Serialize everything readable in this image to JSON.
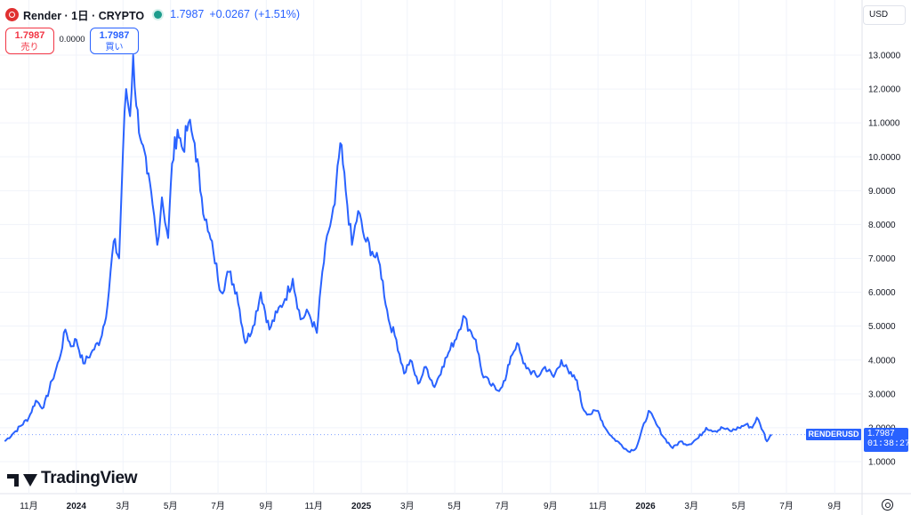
{
  "header": {
    "symbol_title": "Render · 1日 · CRYPTO",
    "price": "1.7987",
    "change": "+0.0267",
    "change_pct": "(+1.51%)"
  },
  "trade": {
    "sell_value": "1.7987",
    "sell_label": "売り",
    "spread": "0.0000",
    "buy_value": "1.7987",
    "buy_label": "買い"
  },
  "currency": "USD",
  "symbol_tag": "RENDERUSD",
  "last_price_tag": "1.7987",
  "countdown": "01:38:27",
  "branding": "TradingView",
  "colors": {
    "line": "#2962ff",
    "sell": "#f23645",
    "buy": "#2962ff",
    "status": "#1c9c8c"
  },
  "icons": {
    "logo": "render-logo-icon",
    "status": "market-status-dot-icon",
    "settings": "settings-icon"
  },
  "chart_data": {
    "type": "line",
    "title": "Render · 1日 · CRYPTO",
    "series": [
      {
        "name": "RENDERUSD",
        "points": [
          [
            "2023-10-01",
            1.6
          ],
          [
            "2023-10-15",
            1.9
          ],
          [
            "2023-11-01",
            2.3
          ],
          [
            "2023-11-10",
            2.8
          ],
          [
            "2023-11-20",
            2.6
          ],
          [
            "2023-12-01",
            3.4
          ],
          [
            "2023-12-10",
            4.0
          ],
          [
            "2023-12-18",
            4.9
          ],
          [
            "2023-12-25",
            4.4
          ],
          [
            "2024-01-01",
            4.6
          ],
          [
            "2024-01-10",
            3.9
          ],
          [
            "2024-01-20",
            4.2
          ],
          [
            "2024-02-01",
            4.6
          ],
          [
            "2024-02-10",
            5.6
          ],
          [
            "2024-02-18",
            7.5
          ],
          [
            "2024-02-25",
            7.0
          ],
          [
            "2024-03-01",
            10.2
          ],
          [
            "2024-03-05",
            12.0
          ],
          [
            "2024-03-10",
            11.2
          ],
          [
            "2024-03-14",
            13.0
          ],
          [
            "2024-03-18",
            11.5
          ],
          [
            "2024-03-25",
            10.4
          ],
          [
            "2024-04-01",
            9.5
          ],
          [
            "2024-04-08",
            8.6
          ],
          [
            "2024-04-14",
            7.4
          ],
          [
            "2024-04-20",
            8.8
          ],
          [
            "2024-04-28",
            7.6
          ],
          [
            "2024-05-03",
            9.8
          ],
          [
            "2024-05-10",
            10.8
          ],
          [
            "2024-05-17",
            10.2
          ],
          [
            "2024-05-24",
            11.0
          ],
          [
            "2024-06-01",
            10.4
          ],
          [
            "2024-06-10",
            8.8
          ],
          [
            "2024-06-18",
            7.8
          ],
          [
            "2024-06-25",
            7.2
          ],
          [
            "2024-07-05",
            6.0
          ],
          [
            "2024-07-15",
            6.6
          ],
          [
            "2024-07-25",
            6.0
          ],
          [
            "2024-08-05",
            4.5
          ],
          [
            "2024-08-15",
            5.0
          ],
          [
            "2024-08-25",
            6.0
          ],
          [
            "2024-09-05",
            4.9
          ],
          [
            "2024-09-15",
            5.4
          ],
          [
            "2024-09-25",
            5.8
          ],
          [
            "2024-10-05",
            6.4
          ],
          [
            "2024-10-15",
            5.2
          ],
          [
            "2024-10-25",
            5.4
          ],
          [
            "2024-11-05",
            4.8
          ],
          [
            "2024-11-12",
            6.6
          ],
          [
            "2024-11-20",
            7.8
          ],
          [
            "2024-11-28",
            8.6
          ],
          [
            "2024-12-05",
            10.4
          ],
          [
            "2024-12-12",
            9.0
          ],
          [
            "2024-12-20",
            7.4
          ],
          [
            "2024-12-28",
            8.4
          ],
          [
            "2025-01-05",
            7.6
          ],
          [
            "2025-01-15",
            7.2
          ],
          [
            "2025-01-25",
            6.8
          ],
          [
            "2025-02-05",
            5.2
          ],
          [
            "2025-02-15",
            4.6
          ],
          [
            "2025-02-25",
            3.6
          ],
          [
            "2025-03-05",
            4.0
          ],
          [
            "2025-03-15",
            3.3
          ],
          [
            "2025-03-25",
            3.8
          ],
          [
            "2025-04-05",
            3.2
          ],
          [
            "2025-04-15",
            3.8
          ],
          [
            "2025-04-25",
            4.3
          ],
          [
            "2025-05-05",
            4.8
          ],
          [
            "2025-05-12",
            5.3
          ],
          [
            "2025-05-20",
            4.9
          ],
          [
            "2025-05-28",
            4.6
          ],
          [
            "2025-06-05",
            3.6
          ],
          [
            "2025-06-15",
            3.3
          ],
          [
            "2025-06-25",
            3.1
          ],
          [
            "2025-07-05",
            3.4
          ],
          [
            "2025-07-12",
            4.1
          ],
          [
            "2025-07-20",
            4.5
          ],
          [
            "2025-07-28",
            3.9
          ],
          [
            "2025-08-05",
            3.7
          ],
          [
            "2025-08-15",
            3.5
          ],
          [
            "2025-08-25",
            3.8
          ],
          [
            "2025-09-05",
            3.5
          ],
          [
            "2025-09-15",
            4.0
          ],
          [
            "2025-09-25",
            3.6
          ],
          [
            "2025-10-05",
            3.4
          ],
          [
            "2025-10-12",
            2.6
          ],
          [
            "2025-10-20",
            2.4
          ],
          [
            "2025-11-01",
            2.5
          ],
          [
            "2025-11-10",
            2.0
          ],
          [
            "2025-11-20",
            1.7
          ],
          [
            "2025-12-01",
            1.5
          ],
          [
            "2025-12-10",
            1.3
          ],
          [
            "2025-12-20",
            1.4
          ],
          [
            "2026-01-05",
            2.5
          ],
          [
            "2026-01-15",
            2.1
          ],
          [
            "2026-01-25",
            1.7
          ],
          [
            "2026-02-05",
            1.4
          ],
          [
            "2026-02-15",
            1.6
          ],
          [
            "2026-02-25",
            1.5
          ],
          [
            "2026-03-10",
            1.7
          ],
          [
            "2026-03-20",
            2.0
          ],
          [
            "2026-04-01",
            1.9
          ],
          [
            "2026-04-10",
            2.0
          ],
          [
            "2026-04-20",
            1.9
          ],
          [
            "2026-05-01",
            2.0
          ],
          [
            "2026-05-10",
            2.1
          ],
          [
            "2026-05-18",
            2.0
          ],
          [
            "2026-05-24",
            2.3
          ],
          [
            "2026-06-01",
            1.9
          ],
          [
            "2026-06-06",
            1.6
          ],
          [
            "2026-06-12",
            1.8
          ]
        ]
      }
    ],
    "x_range": [
      "2023-09-25",
      "2026-10-05"
    ],
    "x_ticks": [
      {
        "label": "11月",
        "date": "2023-11-01",
        "bold": false
      },
      {
        "label": "2024",
        "date": "2024-01-01",
        "bold": true
      },
      {
        "label": "3月",
        "date": "2024-03-01",
        "bold": false
      },
      {
        "label": "5月",
        "date": "2024-05-01",
        "bold": false
      },
      {
        "label": "7月",
        "date": "2024-07-01",
        "bold": false
      },
      {
        "label": "9月",
        "date": "2024-09-01",
        "bold": false
      },
      {
        "label": "11月",
        "date": "2024-11-01",
        "bold": false
      },
      {
        "label": "2025",
        "date": "2025-01-01",
        "bold": true
      },
      {
        "label": "3月",
        "date": "2025-03-01",
        "bold": false
      },
      {
        "label": "5月",
        "date": "2025-05-01",
        "bold": false
      },
      {
        "label": "7月",
        "date": "2025-07-01",
        "bold": false
      },
      {
        "label": "9月",
        "date": "2025-09-01",
        "bold": false
      },
      {
        "label": "11月",
        "date": "2025-11-01",
        "bold": false
      },
      {
        "label": "2026",
        "date": "2026-01-01",
        "bold": true
      },
      {
        "label": "3月",
        "date": "2026-03-01",
        "bold": false
      },
      {
        "label": "5月",
        "date": "2026-05-01",
        "bold": false
      },
      {
        "label": "7月",
        "date": "2026-07-01",
        "bold": false
      },
      {
        "label": "9月",
        "date": "2026-09-01",
        "bold": false
      }
    ],
    "y_ticks": [
      "13.0000",
      "12.0000",
      "11.0000",
      "10.0000",
      "9.0000",
      "8.0000",
      "7.0000",
      "6.0000",
      "5.0000",
      "4.0000",
      "3.0000",
      "2.0000",
      "1.0000"
    ],
    "ylim": [
      0.0,
      14.0
    ],
    "last_value": 1.7987,
    "grid": true,
    "legend": "none"
  }
}
